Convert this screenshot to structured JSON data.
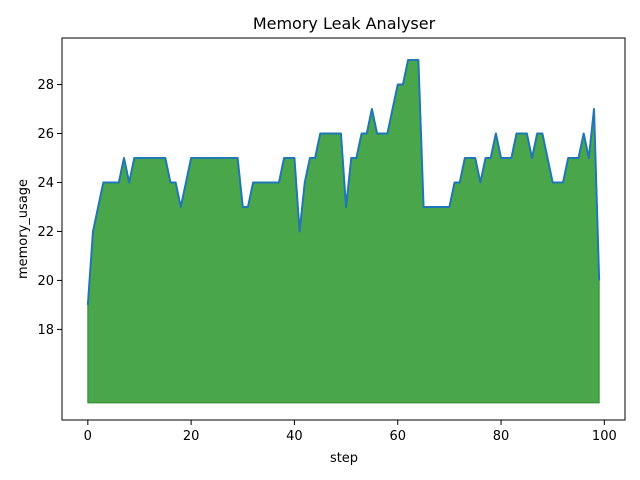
{
  "chart_data": {
    "type": "area",
    "title": "Memory Leak Analyser",
    "xlabel": "step",
    "ylabel": "memory_usage",
    "xlim": [
      -5,
      104
    ],
    "ylim": [
      14.3,
      29.9
    ],
    "area_baseline": 15,
    "xticks": [
      0,
      20,
      40,
      60,
      80,
      100
    ],
    "yticks": [
      18,
      20,
      22,
      24,
      26,
      28
    ],
    "grid": false,
    "legend": "none",
    "fill_color": "#4aa64a",
    "fill_edge_color": "#2e8b2e",
    "line_color": "#1f77b4",
    "x": [
      0,
      1,
      2,
      3,
      4,
      5,
      6,
      7,
      8,
      9,
      10,
      11,
      12,
      13,
      14,
      15,
      16,
      17,
      18,
      19,
      20,
      21,
      22,
      23,
      24,
      25,
      26,
      27,
      28,
      29,
      30,
      31,
      32,
      33,
      34,
      35,
      36,
      37,
      38,
      39,
      40,
      41,
      42,
      43,
      44,
      45,
      46,
      47,
      48,
      49,
      50,
      51,
      52,
      53,
      54,
      55,
      56,
      57,
      58,
      59,
      60,
      61,
      62,
      63,
      64,
      65,
      66,
      67,
      68,
      69,
      70,
      71,
      72,
      73,
      74,
      75,
      76,
      77,
      78,
      79,
      80,
      81,
      82,
      83,
      84,
      85,
      86,
      87,
      88,
      89,
      90,
      91,
      92,
      93,
      94,
      95,
      96,
      97,
      98,
      99
    ],
    "y": [
      19,
      22,
      23,
      24,
      24,
      24,
      24,
      25,
      24,
      25,
      25,
      25,
      25,
      25,
      25,
      25,
      24,
      24,
      23,
      24,
      25,
      25,
      25,
      25,
      25,
      25,
      25,
      25,
      25,
      25,
      23,
      23,
      24,
      24,
      24,
      24,
      24,
      24,
      25,
      25,
      25,
      22,
      24,
      25,
      25,
      26,
      26,
      26,
      26,
      26,
      23,
      25,
      25,
      26,
      26,
      27,
      26,
      26,
      26,
      27,
      28,
      28,
      29,
      29,
      29,
      23,
      23,
      23,
      23,
      23,
      23,
      24,
      24,
      25,
      25,
      25,
      24,
      25,
      25,
      26,
      25,
      25,
      25,
      26,
      26,
      26,
      25,
      26,
      26,
      25,
      24,
      24,
      24,
      25,
      25,
      25,
      26,
      25,
      27,
      20
    ]
  }
}
